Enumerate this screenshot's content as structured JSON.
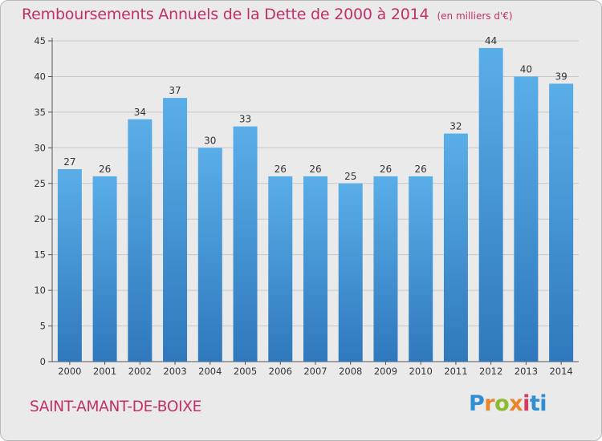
{
  "title": "Remboursements Annuels de la Dette de 2000 à 2014",
  "unit_note": "(en milliers d'€)",
  "commune": "SAINT-AMANT-DE-BOIXE",
  "logo": {
    "text": "Proxiti",
    "letters": [
      "P",
      "r",
      "o",
      "x",
      "i",
      "ti"
    ]
  },
  "colors": {
    "accent": "#c1306a",
    "bar_top": "#5aaee8",
    "bar_bottom": "#2f78bd",
    "grid": "#c8c8c8",
    "background": "#eaeaea"
  },
  "chart_data": {
    "type": "bar",
    "title": "Remboursements Annuels de la Dette de 2000 à 2014",
    "xlabel": "",
    "ylabel": "en milliers d'€",
    "categories": [
      "2000",
      "2001",
      "2002",
      "2003",
      "2004",
      "2005",
      "2006",
      "2007",
      "2008",
      "2009",
      "2010",
      "2011",
      "2012",
      "2013",
      "2014"
    ],
    "values": [
      27,
      26,
      34,
      37,
      30,
      33,
      26,
      26,
      25,
      26,
      26,
      32,
      44,
      40,
      39
    ],
    "ylim": [
      0,
      45
    ],
    "yticks": [
      0,
      5,
      10,
      15,
      20,
      25,
      30,
      35,
      40,
      45
    ],
    "grid": true,
    "legend": "none"
  }
}
